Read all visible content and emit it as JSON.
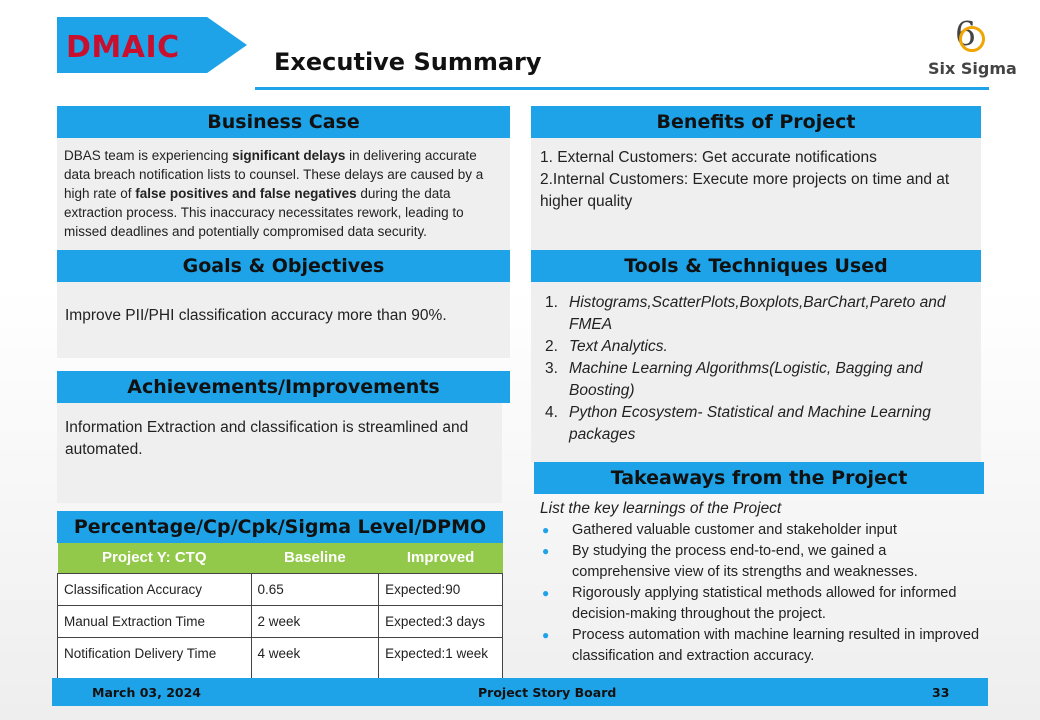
{
  "header": {
    "phase": "DMAIC",
    "title": "Executive Summary",
    "logo_number": "6",
    "logo_text": "Six Sigma"
  },
  "business_case": {
    "heading": "Business Case",
    "text_1": "DBAS team is experiencing ",
    "bold_1": "significant delays",
    "text_2": " in delivering accurate data breach notification lists to counsel. These delays are caused by a high rate of ",
    "bold_2": "false positives and false negatives",
    "text_3": " during the data extraction process. This inaccuracy necessitates rework, leading to missed deadlines and potentially compromised data security."
  },
  "benefits": {
    "heading": "Benefits of Project",
    "line_1": "1. External Customers: Get accurate notifications",
    "line_2": "2.Internal Customers: Execute more projects on time and at higher quality"
  },
  "goals": {
    "heading": "Goals & Objectives",
    "text": "Improve PII/PHI classification accuracy more than 90%."
  },
  "tools": {
    "heading": "Tools & Techniques Used",
    "items": [
      {
        "num": "1.",
        "text": "Histograms,ScatterPlots,Boxplots,BarChart,Pareto and FMEA"
      },
      {
        "num": "2.",
        "text": "Text Analytics."
      },
      {
        "num": "3.",
        "text": "Machine Learning Algorithms(Logistic, Bagging and Boosting)"
      },
      {
        "num": "4.",
        "text": "Python Ecosystem- Statistical and Machine Learning packages"
      }
    ]
  },
  "achievements": {
    "heading": "Achievements/Improvements",
    "text": "Information Extraction and classification is streamlined and automated."
  },
  "takeaways": {
    "heading": "Takeaways from the Project",
    "intro": "List the key learnings of the Project",
    "items": [
      "Gathered valuable customer and stakeholder input",
      "By studying the process end-to-end, we gained a comprehensive view of its strengths and weaknesses.",
      "Rigorously applying statistical methods allowed for informed decision-making throughout the project.",
      "Process automation with machine learning resulted in improved classification and extraction accuracy."
    ]
  },
  "metrics": {
    "heading": "Percentage/Cp/Cpk/Sigma Level/DPMO",
    "columns": [
      "Project Y: CTQ",
      "Baseline",
      "Improved"
    ],
    "rows": [
      [
        "Classification Accuracy",
        "0.65",
        "Expected:90"
      ],
      [
        "Manual Extraction Time",
        "2 week",
        "Expected:3 days"
      ],
      [
        "Notification Delivery Time",
        "4 week",
        "Expected:1 week"
      ]
    ]
  },
  "footer": {
    "date": "March 03, 2024",
    "center": "Project Story Board",
    "page": "33"
  },
  "colors": {
    "accent_blue": "#1fa3e8",
    "dmaic_red": "#c8102e",
    "table_header_green": "#93c94a",
    "logo_orange": "#f0a500"
  }
}
